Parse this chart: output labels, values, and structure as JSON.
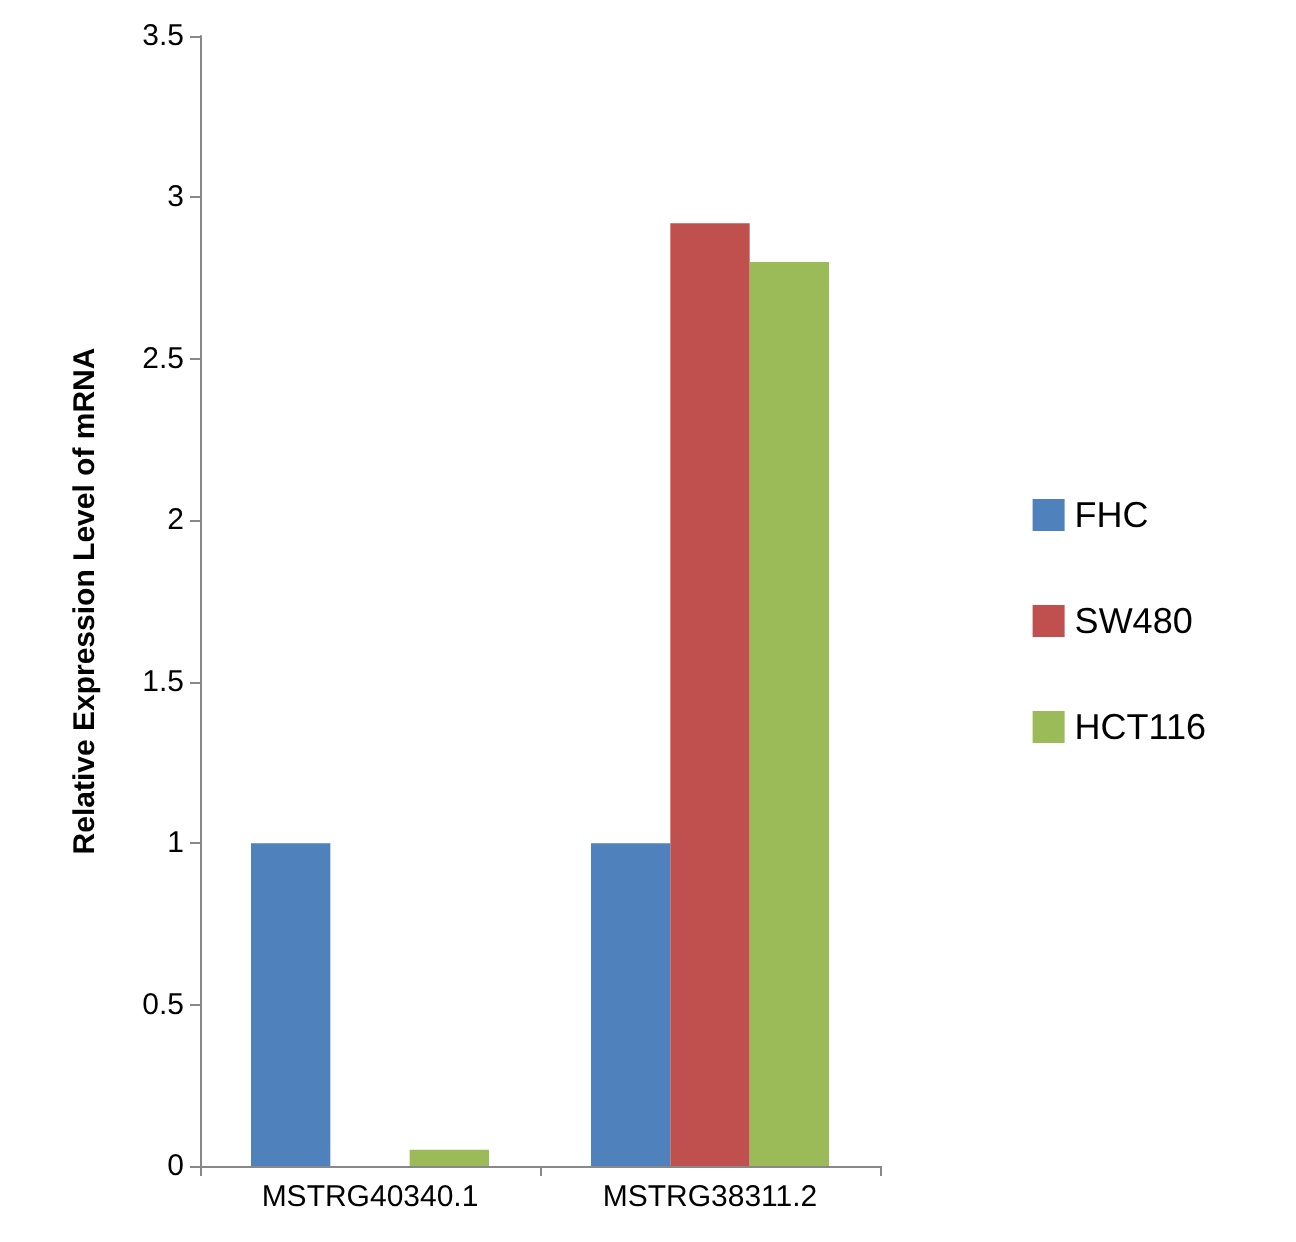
{
  "chart_data": {
    "type": "bar",
    "ylabel": "Relative Expression Level of mRNA",
    "categories": [
      "MSTRG40340.1",
      "MSTRG38311.2"
    ],
    "series": [
      {
        "name": "FHC",
        "color": "#4f81bd",
        "values": [
          1,
          1
        ]
      },
      {
        "name": "SW480",
        "color": "#c0504d",
        "values": [
          0,
          2.92
        ]
      },
      {
        "name": "HCT116",
        "color": "#9bbb59",
        "values": [
          0.05,
          2.8
        ]
      }
    ],
    "ylim": [
      0,
      3.5
    ],
    "yticks": [
      0,
      0.5,
      1,
      1.5,
      2,
      2.5,
      3,
      3.5
    ],
    "grid": false,
    "legend": "right"
  }
}
